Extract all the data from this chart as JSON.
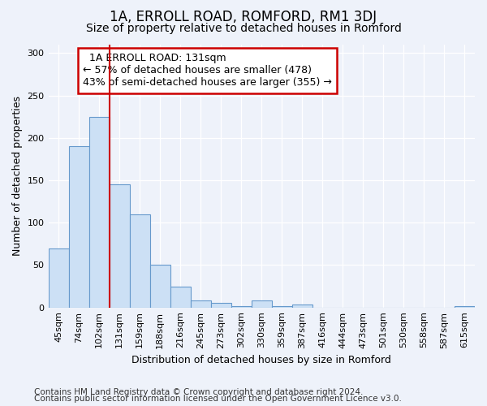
{
  "title": "1A, ERROLL ROAD, ROMFORD, RM1 3DJ",
  "subtitle": "Size of property relative to detached houses in Romford",
  "xlabel": "Distribution of detached houses by size in Romford",
  "ylabel": "Number of detached properties",
  "footnote1": "Contains HM Land Registry data © Crown copyright and database right 2024.",
  "footnote2": "Contains public sector information licensed under the Open Government Licence v3.0.",
  "annotation_line1": "1A ERROLL ROAD: 131sqm",
  "annotation_line2": "← 57% of detached houses are smaller (478)",
  "annotation_line3": "43% of semi-detached houses are larger (355) →",
  "bar_labels": [
    "45sqm",
    "74sqm",
    "102sqm",
    "131sqm",
    "159sqm",
    "188sqm",
    "216sqm",
    "245sqm",
    "273sqm",
    "302sqm",
    "330sqm",
    "359sqm",
    "387sqm",
    "416sqm",
    "444sqm",
    "473sqm",
    "501sqm",
    "530sqm",
    "558sqm",
    "587sqm",
    "615sqm"
  ],
  "bar_values": [
    70,
    190,
    225,
    145,
    110,
    50,
    25,
    8,
    5,
    2,
    8,
    2,
    4,
    0,
    0,
    0,
    0,
    0,
    0,
    0,
    2
  ],
  "bar_color": "#cce0f5",
  "bar_edge_color": "#6699cc",
  "vline_color": "#cc0000",
  "background_color": "#eef2fa",
  "plot_bg_color": "#eef2fa",
  "ylim": [
    0,
    310
  ],
  "yticks": [
    0,
    50,
    100,
    150,
    200,
    250,
    300
  ],
  "annotation_box_edge_color": "#cc0000",
  "title_fontsize": 12,
  "subtitle_fontsize": 10,
  "axis_label_fontsize": 9,
  "tick_fontsize": 8,
  "annotation_fontsize": 9,
  "footnote_fontsize": 7.5
}
